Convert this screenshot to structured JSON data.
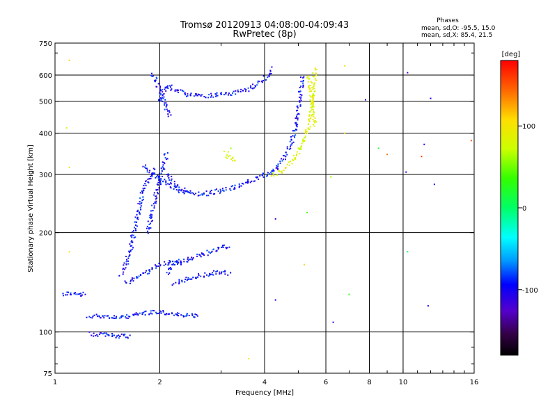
{
  "chart_data": {
    "type": "scatter",
    "title": "Tromsø 20120913 04:08:00-04:09:43",
    "subtitle": "RwPretec (8p)",
    "info": {
      "heading": "Phases",
      "line1": "mean, sd,O: -95.5, 15.0",
      "line2": "mean, sd,X:  85.4, 21.5"
    },
    "xlabel": "Frequency [MHz]",
    "ylabel": "Stationary phase Virtual Height [km]",
    "x_scale": "log",
    "y_scale": "log",
    "xlim": [
      1,
      16
    ],
    "ylim": [
      75,
      750
    ],
    "x_ticks": [
      1,
      2,
      4,
      6,
      8,
      10,
      16
    ],
    "x_tick_labels": [
      "1",
      "2",
      "4",
      "6",
      "8",
      "10",
      "16"
    ],
    "y_ticks": [
      75,
      100,
      200,
      300,
      400,
      500,
      600,
      750
    ],
    "y_tick_labels": [
      "75",
      "100",
      "200",
      "300",
      "400",
      "500",
      "600",
      "750"
    ],
    "x_gridlines": [
      2,
      4,
      6,
      8,
      10
    ],
    "y_gridlines": [
      100,
      200,
      300,
      400,
      500,
      600
    ],
    "grid": true,
    "colorbar": {
      "label": "[deg]",
      "range": [
        -180,
        180
      ],
      "ticks": [
        100,
        0,
        -100
      ],
      "tick_labels": [
        "100",
        "0",
        "-100"
      ]
    },
    "series": [
      {
        "mode": "O",
        "color_value": -95,
        "segments": [
          {
            "points": [
              [
                1.05,
                130
              ],
              [
                1.1,
                131
              ],
              [
                1.15,
                130
              ],
              [
                1.2,
                129
              ],
              [
                1.22,
                131
              ]
            ]
          },
          {
            "points": [
              [
                1.25,
                110
              ],
              [
                1.3,
                112
              ],
              [
                1.35,
                112
              ],
              [
                1.45,
                111
              ],
              [
                1.55,
                110
              ],
              [
                1.65,
                112
              ],
              [
                1.8,
                114
              ],
              [
                2.0,
                115
              ],
              [
                2.2,
                113
              ],
              [
                2.4,
                112
              ],
              [
                2.6,
                112
              ]
            ]
          },
          {
            "points": [
              [
                1.27,
                99
              ],
              [
                1.3,
                98
              ],
              [
                1.35,
                98
              ],
              [
                1.4,
                98
              ],
              [
                1.45,
                98
              ],
              [
                1.5,
                97
              ],
              [
                1.55,
                98
              ],
              [
                1.6,
                97
              ],
              [
                1.65,
                97
              ]
            ]
          },
          {
            "points": [
              [
                1.55,
                150
              ],
              [
                1.6,
                160
              ],
              [
                1.65,
                180
              ],
              [
                1.7,
                210
              ],
              [
                1.75,
                240
              ],
              [
                1.8,
                270
              ],
              [
                1.85,
                290
              ],
              [
                1.9,
                300
              ],
              [
                1.95,
                310
              ]
            ]
          },
          {
            "points": [
              [
                1.6,
                140
              ],
              [
                1.7,
                145
              ],
              [
                1.8,
                150
              ],
              [
                1.9,
                155
              ],
              [
                2.0,
                160
              ],
              [
                2.1,
                162
              ],
              [
                2.3,
                165
              ]
            ]
          },
          {
            "points": [
              [
                1.85,
                200
              ],
              [
                1.9,
                230
              ],
              [
                1.95,
                260
              ],
              [
                2.0,
                290
              ],
              [
                2.05,
                320
              ],
              [
                2.1,
                350
              ]
            ]
          },
          {
            "points": [
              [
                2.1,
                150
              ],
              [
                2.2,
                160
              ],
              [
                2.4,
                165
              ],
              [
                2.6,
                170
              ],
              [
                2.8,
                175
              ],
              [
                3.0,
                180
              ],
              [
                3.2,
                183
              ]
            ]
          },
          {
            "points": [
              [
                2.2,
                140
              ],
              [
                2.4,
                145
              ],
              [
                2.6,
                148
              ],
              [
                2.8,
                150
              ],
              [
                3.0,
                152
              ],
              [
                3.2,
                150
              ]
            ]
          },
          {
            "points": [
              [
                1.9,
                600
              ],
              [
                1.95,
                580
              ],
              [
                2.0,
                540
              ],
              [
                2.05,
                500
              ],
              [
                2.1,
                470
              ],
              [
                2.15,
                450
              ]
            ]
          },
          {
            "points": [
              [
                2.0,
                500
              ],
              [
                2.05,
                530
              ],
              [
                2.1,
                560
              ],
              [
                2.2,
                540
              ],
              [
                2.4,
                525
              ],
              [
                2.6,
                520
              ],
              [
                2.8,
                520
              ],
              [
                3.0,
                525
              ],
              [
                3.3,
                530
              ],
              [
                3.6,
                545
              ],
              [
                3.9,
                570
              ],
              [
                4.1,
                600
              ],
              [
                4.2,
                630
              ]
            ]
          },
          {
            "points": [
              [
                2.1,
                300
              ],
              [
                2.2,
                280
              ],
              [
                2.3,
                268
              ],
              [
                2.5,
                262
              ],
              [
                2.7,
                262
              ],
              [
                3.0,
                268
              ],
              [
                3.3,
                275
              ],
              [
                3.6,
                285
              ],
              [
                3.9,
                295
              ],
              [
                4.2,
                305
              ],
              [
                4.4,
                320
              ],
              [
                4.6,
                345
              ],
              [
                4.8,
                380
              ],
              [
                4.9,
                420
              ],
              [
                5.0,
                470
              ],
              [
                5.05,
                520
              ],
              [
                5.1,
                560
              ],
              [
                5.15,
                600
              ]
            ]
          },
          {
            "points": [
              [
                1.8,
                320
              ],
              [
                1.9,
                300
              ],
              [
                2.0,
                290
              ],
              [
                2.2,
                275
              ],
              [
                2.4,
                268
              ]
            ]
          }
        ]
      },
      {
        "mode": "X",
        "color_value": 85,
        "segments": [
          {
            "points": [
              [
                4.2,
                300
              ],
              [
                4.4,
                305
              ],
              [
                4.6,
                315
              ],
              [
                4.8,
                330
              ],
              [
                5.0,
                350
              ],
              [
                5.2,
                380
              ],
              [
                5.35,
                420
              ],
              [
                5.45,
                470
              ],
              [
                5.5,
                520
              ],
              [
                5.55,
                580
              ],
              [
                5.6,
                630
              ]
            ]
          },
          {
            "points": [
              [
                3.1,
                350
              ],
              [
                3.15,
                340
              ],
              [
                3.2,
                335
              ],
              [
                3.25,
                330
              ],
              [
                3.3,
                325
              ]
            ]
          },
          {
            "points": [
              [
                5.3,
                600
              ],
              [
                5.4,
                560
              ],
              [
                5.5,
                500
              ],
              [
                5.55,
                450
              ],
              [
                5.6,
                420
              ]
            ]
          }
        ]
      }
    ],
    "scattered_points": [
      {
        "x": 10.3,
        "y": 610,
        "v": -120
      },
      {
        "x": 12.0,
        "y": 510,
        "v": -100
      },
      {
        "x": 7.8,
        "y": 505,
        "v": -110
      },
      {
        "x": 11.5,
        "y": 370,
        "v": -100
      },
      {
        "x": 10.2,
        "y": 305,
        "v": -110
      },
      {
        "x": 11.3,
        "y": 340,
        "v": 160
      },
      {
        "x": 12.3,
        "y": 280,
        "v": -100
      },
      {
        "x": 15.7,
        "y": 380,
        "v": 150
      },
      {
        "x": 9.0,
        "y": 345,
        "v": 140
      },
      {
        "x": 8.5,
        "y": 360,
        "v": 20
      },
      {
        "x": 6.2,
        "y": 295,
        "v": 60
      },
      {
        "x": 6.8,
        "y": 400,
        "v": 110
      },
      {
        "x": 7.0,
        "y": 130,
        "v": 30
      },
      {
        "x": 10.3,
        "y": 175,
        "v": 0
      },
      {
        "x": 11.8,
        "y": 120,
        "v": -110
      },
      {
        "x": 6.3,
        "y": 107,
        "v": -100
      },
      {
        "x": 1.1,
        "y": 665,
        "v": 110
      },
      {
        "x": 1.08,
        "y": 415,
        "v": 90
      },
      {
        "x": 1.1,
        "y": 315,
        "v": 100
      },
      {
        "x": 1.1,
        "y": 175,
        "v": 100
      },
      {
        "x": 4.3,
        "y": 220,
        "v": -120
      },
      {
        "x": 4.3,
        "y": 125,
        "v": -100
      },
      {
        "x": 3.6,
        "y": 83,
        "v": 100
      },
      {
        "x": 6.8,
        "y": 640,
        "v": 110
      },
      {
        "x": 5.2,
        "y": 160,
        "v": 110
      },
      {
        "x": 5.3,
        "y": 230,
        "v": 40
      },
      {
        "x": 3.2,
        "y": 360,
        "v": 60
      }
    ]
  }
}
